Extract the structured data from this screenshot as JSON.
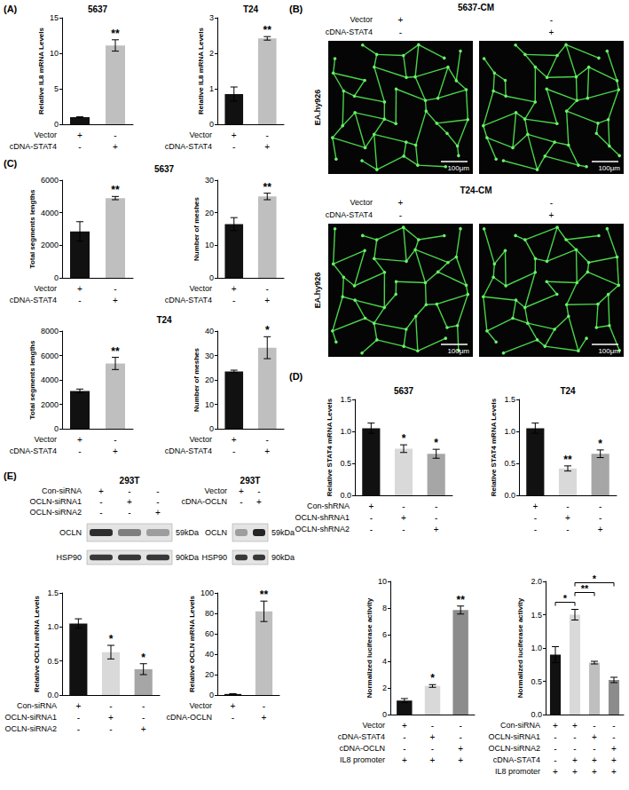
{
  "panel_labels": [
    "(A)",
    "(B)",
    "(C)",
    "(D)",
    "(E)"
  ],
  "images": [
    {
      "title": "5637-CM",
      "cell": "EA.hy926",
      "scale_bar": "100μm",
      "conditions": [
        {
          "label": "Vector",
          "marks": [
            "+",
            "-"
          ]
        },
        {
          "label": "cDNA-STAT4",
          "marks": [
            "-",
            "+"
          ]
        }
      ]
    },
    {
      "title": "T24-CM",
      "cell": "EA.hy926",
      "scale_bar": "100μm",
      "conditions": [
        {
          "label": "Vector",
          "marks": [
            "+",
            "-"
          ]
        },
        {
          "label": "cDNA-STAT4",
          "marks": [
            "-",
            "+"
          ]
        }
      ]
    }
  ],
  "blots": [
    {
      "cell": "293T",
      "conditions": [
        {
          "label": "Con-siRNA",
          "marks": [
            "+",
            "-",
            "-"
          ]
        },
        {
          "label": "OCLN-siRNA1",
          "marks": [
            "-",
            "+",
            "-"
          ]
        },
        {
          "label": "OCLN-siRNA2",
          "marks": [
            "-",
            "-",
            "+"
          ]
        }
      ],
      "bands": [
        {
          "label": "OCLN",
          "size": "59kDa"
        },
        {
          "label": "HSP90",
          "size": "90kDa"
        }
      ]
    },
    {
      "cell": "293T",
      "conditions": [
        {
          "label": "Vector",
          "marks": [
            "+",
            "-"
          ]
        },
        {
          "label": "cDNA-OCLN",
          "marks": [
            "-",
            "+"
          ]
        }
      ],
      "bands": [
        {
          "label": "OCLN",
          "size": "59kDa"
        },
        {
          "label": "HSP90",
          "size": "90kDa"
        }
      ]
    }
  ],
  "chart_data": [
    {
      "type": "bar",
      "title": "5637",
      "ylabel": "Relative IL8 mRNA Levels",
      "grid": false,
      "categories": [
        null,
        null
      ],
      "values": [
        1.0,
        11.1
      ],
      "errors": [
        0.05,
        0.8
      ],
      "significance": [
        null,
        "**"
      ],
      "colors": [
        "#111111",
        "#bfbfbf"
      ],
      "ylim": [
        0,
        15
      ],
      "yticks": [
        0,
        5,
        10,
        15
      ],
      "conditions": [
        {
          "label": "Vector",
          "marks": [
            "+",
            "-"
          ]
        },
        {
          "label": "cDNA-STAT4",
          "marks": [
            "-",
            "+"
          ]
        }
      ]
    },
    {
      "type": "bar",
      "title": "T24",
      "ylabel": "Relative IL8 mRNA Levels",
      "grid": false,
      "categories": [
        null,
        null
      ],
      "values": [
        0.85,
        2.42
      ],
      "errors": [
        0.2,
        0.05
      ],
      "significance": [
        null,
        "**"
      ],
      "colors": [
        "#111111",
        "#bfbfbf"
      ],
      "ylim": [
        0,
        3
      ],
      "yticks": [
        0,
        1,
        2,
        3
      ],
      "conditions": [
        {
          "label": "Vector",
          "marks": [
            "+",
            "-"
          ]
        },
        {
          "label": "cDNA-STAT4",
          "marks": [
            "-",
            "+"
          ]
        }
      ]
    },
    {
      "type": "bar",
      "title": "5637",
      "ylabel": "Total segments lengths",
      "grid": false,
      "categories": [
        null,
        null
      ],
      "values": [
        2850,
        4900
      ],
      "errors": [
        600,
        100
      ],
      "significance": [
        null,
        "**"
      ],
      "colors": [
        "#111111",
        "#bfbfbf"
      ],
      "ylim": [
        0,
        6000
      ],
      "yticks": [
        0,
        2000,
        4000,
        6000
      ],
      "conditions": [
        {
          "label": "Vector",
          "marks": [
            "+",
            "-"
          ]
        },
        {
          "label": "cDNA-STAT4",
          "marks": [
            "-",
            "+"
          ]
        }
      ]
    },
    {
      "type": "bar",
      "ylabel": "Number of meshes",
      "grid": false,
      "categories": [
        null,
        null
      ],
      "values": [
        16.5,
        25
      ],
      "errors": [
        2,
        1
      ],
      "significance": [
        null,
        "**"
      ],
      "colors": [
        "#111111",
        "#bfbfbf"
      ],
      "ylim": [
        0,
        30
      ],
      "yticks": [
        0,
        10,
        20,
        30
      ],
      "conditions": [
        {
          "label": "Vector",
          "marks": [
            "+",
            "-"
          ]
        },
        {
          "label": "cDNA-STAT4",
          "marks": [
            "-",
            "+"
          ]
        }
      ]
    },
    {
      "type": "bar",
      "title": "T24",
      "ylabel": "Total segments lengths",
      "grid": false,
      "categories": [
        null,
        null
      ],
      "values": [
        3100,
        5350
      ],
      "errors": [
        150,
        500
      ],
      "significance": [
        null,
        "**"
      ],
      "colors": [
        "#111111",
        "#bfbfbf"
      ],
      "ylim": [
        0,
        8000
      ],
      "yticks": [
        0,
        2000,
        4000,
        6000,
        8000
      ],
      "conditions": [
        {
          "label": "Vector",
          "marks": [
            "+",
            "-"
          ]
        },
        {
          "label": "cDNA-STAT4",
          "marks": [
            "-",
            "+"
          ]
        }
      ]
    },
    {
      "type": "bar",
      "ylabel": "Number of meshes",
      "grid": false,
      "categories": [
        null,
        null
      ],
      "values": [
        23.5,
        33.2
      ],
      "errors": [
        0.5,
        4.5
      ],
      "significance": [
        null,
        "*"
      ],
      "colors": [
        "#111111",
        "#bfbfbf"
      ],
      "ylim": [
        0,
        40
      ],
      "yticks": [
        0,
        10,
        20,
        30,
        40
      ],
      "conditions": [
        {
          "label": "Vector",
          "marks": [
            "+",
            "-"
          ]
        },
        {
          "label": "cDNA-STAT4",
          "marks": [
            "-",
            "+"
          ]
        }
      ]
    },
    {
      "type": "bar",
      "title": "5637",
      "ylabel": "Relative STAT4 mRNA Levels",
      "grid": false,
      "categories": [
        null,
        null,
        null
      ],
      "values": [
        1.05,
        0.73,
        0.65
      ],
      "errors": [
        0.08,
        0.06,
        0.07
      ],
      "significance": [
        null,
        "*",
        "*"
      ],
      "colors": [
        "#111111",
        "#d9d9d9",
        "#a6a6a6"
      ],
      "ylim": [
        0,
        1.5
      ],
      "yticks": [
        {
          "value": 0,
          "label": "0.0"
        },
        0.5,
        {
          "value": 1,
          "label": "1.0"
        },
        1.5
      ],
      "conditions": [
        {
          "label": "Con-shRNA",
          "marks": [
            "+",
            "-",
            "-"
          ]
        },
        {
          "label": "OCLN-shRNA1",
          "marks": [
            "-",
            "+",
            "-"
          ]
        },
        {
          "label": "OCLN-shRNA2",
          "marks": [
            "-",
            "-",
            "+"
          ]
        }
      ]
    },
    {
      "type": "bar",
      "title": "T24",
      "ylabel": "Relative STAT4 mRNA Levels",
      "grid": false,
      "categories": [
        null,
        null,
        null
      ],
      "values": [
        1.05,
        0.42,
        0.65
      ],
      "errors": [
        0.08,
        0.04,
        0.06
      ],
      "significance": [
        null,
        "**",
        "*"
      ],
      "colors": [
        "#111111",
        "#d9d9d9",
        "#a6a6a6"
      ],
      "ylim": [
        0,
        1.5
      ],
      "yticks": [
        {
          "value": 0,
          "label": "0.0"
        },
        0.5,
        {
          "value": 1,
          "label": "1.0"
        },
        1.5
      ],
      "conditions": [
        {
          "marks": [
            "+",
            "-",
            "-"
          ]
        },
        {
          "marks": [
            "-",
            "+",
            "-"
          ]
        },
        {
          "marks": [
            "-",
            "-",
            "+"
          ]
        }
      ]
    },
    {
      "type": "bar",
      "ylabel": "Relative OCLN mRNA Levels",
      "grid": false,
      "categories": [
        null,
        null,
        null
      ],
      "values": [
        1.05,
        0.63,
        0.38
      ],
      "errors": [
        0.07,
        0.1,
        0.08
      ],
      "significance": [
        null,
        "*",
        "*"
      ],
      "colors": [
        "#111111",
        "#d9d9d9",
        "#a6a6a6"
      ],
      "ylim": [
        0,
        1.5
      ],
      "yticks": [
        {
          "value": 0,
          "label": "0.0"
        },
        0.5,
        {
          "value": 1,
          "label": "1.0"
        },
        1.5
      ],
      "conditions": [
        {
          "label": "Con-siRNA",
          "marks": [
            "+",
            "-",
            "-"
          ]
        },
        {
          "label": "OCLN-siRNA1",
          "marks": [
            "-",
            "+",
            "-"
          ]
        },
        {
          "label": "OCLN-siRNA2",
          "marks": [
            "-",
            "-",
            "+"
          ]
        }
      ]
    },
    {
      "type": "bar",
      "ylabel": "Relative OCLN mRNA Levels",
      "grid": false,
      "categories": [
        null,
        null
      ],
      "values": [
        1,
        82
      ],
      "errors": [
        0.3,
        10
      ],
      "significance": [
        null,
        "**"
      ],
      "colors": [
        "#111111",
        "#bfbfbf"
      ],
      "ylim": [
        0,
        100
      ],
      "yticks": [
        0,
        20,
        40,
        60,
        80,
        100
      ],
      "conditions": [
        {
          "label": "Vector",
          "marks": [
            "+",
            "-"
          ]
        },
        {
          "label": "cDNA-OCLN",
          "marks": [
            "-",
            "+"
          ]
        }
      ]
    },
    {
      "type": "bar",
      "ylabel": "Normalized luciferase activity",
      "grid": false,
      "categories": [
        null,
        null,
        null
      ],
      "values": [
        1.05,
        2.15,
        7.85
      ],
      "errors": [
        0.15,
        0.1,
        0.3
      ],
      "significance": [
        null,
        "*",
        "**"
      ],
      "colors": [
        "#111111",
        "#d9d9d9",
        "#8c8c8c"
      ],
      "ylim": [
        0,
        10
      ],
      "yticks": [
        0,
        2,
        4,
        6,
        8,
        10
      ],
      "conditions": [
        {
          "label": "Vector",
          "marks": [
            "+",
            "-",
            "-"
          ]
        },
        {
          "label": "cDNA-STAT4",
          "marks": [
            "-",
            "+",
            "-"
          ]
        },
        {
          "label": "cDNA-OCLN",
          "marks": [
            "-",
            "-",
            "+"
          ]
        },
        {
          "label": "IL8 promoter",
          "marks": [
            "+",
            "+",
            "+"
          ]
        }
      ]
    },
    {
      "type": "bar",
      "ylabel": "Normalized luciferase activity",
      "grid": false,
      "categories": [
        null,
        null,
        null,
        null
      ],
      "values": [
        0.9,
        1.5,
        0.78,
        0.52
      ],
      "errors": [
        0.12,
        0.08,
        0.02,
        0.04
      ],
      "significance": [
        null,
        null,
        null,
        null
      ],
      "comparisons": [
        {
          "from": 0,
          "to": 1,
          "label": "*"
        },
        {
          "from": 1,
          "to": 2,
          "label": "**"
        },
        {
          "from": 1,
          "to": 3,
          "label": "*"
        }
      ],
      "colors": [
        "#111111",
        "#d9d9d9",
        "#bfbfbf",
        "#8c8c8c"
      ],
      "ylim": [
        0,
        2
      ],
      "yticks": [
        {
          "value": 0,
          "label": "0.0"
        },
        0.5,
        {
          "value": 1,
          "label": "1.0"
        },
        1.5,
        {
          "value": 2,
          "label": "2.0"
        }
      ],
      "conditions": [
        {
          "label": "Con-siRNA",
          "marks": [
            "+",
            "+",
            "-",
            "-"
          ]
        },
        {
          "label": "OCLN-siRNA1",
          "marks": [
            "-",
            "-",
            "+",
            "-"
          ]
        },
        {
          "label": "OCLN-siRNA2",
          "marks": [
            "-",
            "-",
            "-",
            "+"
          ]
        },
        {
          "label": "cDNA-STAT4",
          "marks": [
            "-",
            "+",
            "+",
            "+"
          ]
        },
        {
          "label": "IL8 promoter",
          "marks": [
            "+",
            "+",
            "+",
            "+"
          ]
        }
      ]
    }
  ]
}
